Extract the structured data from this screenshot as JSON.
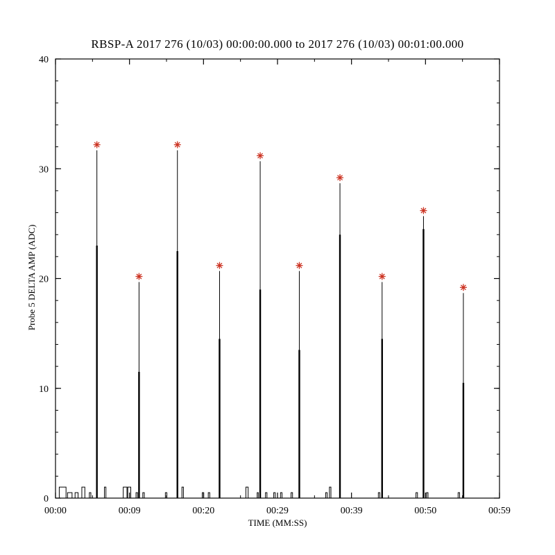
{
  "background": "#ffffff",
  "axes_color": "#000000",
  "chart_data": {
    "type": "line",
    "title": "RBSP-A 2017 276 (10/03) 00:00:00.000 to 2017 276 (10/03) 00:01:00.000",
    "xlabel": "TIME (MM:SS)",
    "ylabel": "Probe 5 DELTA AMP (ADC)",
    "xlim_seconds": [
      0,
      59
    ],
    "ylim": [
      0,
      40
    ],
    "xtick_labels": [
      "00:00",
      "00:09",
      "00:20",
      "00:29",
      "00:39",
      "00:50",
      "00:59"
    ],
    "ytick_values": [
      0,
      10,
      20,
      30,
      40
    ],
    "ytick_labels": [
      "0",
      "10",
      "20",
      "30",
      "40"
    ],
    "y_minor_step": 2,
    "grid": false,
    "legend": "none",
    "line_color": "#000000",
    "marker": "asterisk",
    "marker_color": "#cc3322",
    "spikes": [
      {
        "t": 5.5,
        "peak": 32,
        "thick_to": 23.0
      },
      {
        "t": 11.1,
        "peak": 20,
        "thick_to": 11.5
      },
      {
        "t": 16.2,
        "peak": 32,
        "thick_to": 22.5
      },
      {
        "t": 21.8,
        "peak": 21,
        "thick_to": 14.5
      },
      {
        "t": 27.2,
        "peak": 31,
        "thick_to": 19.0
      },
      {
        "t": 32.4,
        "peak": 21,
        "thick_to": 13.5
      },
      {
        "t": 37.8,
        "peak": 29,
        "thick_to": 24.0
      },
      {
        "t": 43.4,
        "peak": 20,
        "thick_to": 14.5
      },
      {
        "t": 48.9,
        "peak": 26,
        "thick_to": 24.5
      },
      {
        "t": 54.2,
        "peak": 19,
        "thick_to": 10.5
      }
    ],
    "noise_pulses": [
      [
        0.5,
        0.9,
        1
      ],
      [
        1.6,
        0.6,
        0.5
      ],
      [
        2.6,
        0.4,
        0.5
      ],
      [
        3.5,
        0.4,
        1
      ],
      [
        4.5,
        0.2,
        0.5
      ],
      [
        6.5,
        0.2,
        1
      ],
      [
        9.0,
        0.5,
        1
      ],
      [
        9.6,
        0.4,
        1
      ],
      [
        10.7,
        0.2,
        0.5
      ],
      [
        11.6,
        0.2,
        0.5
      ],
      [
        14.6,
        0.2,
        0.5
      ],
      [
        16.8,
        0.2,
        1
      ],
      [
        19.5,
        0.2,
        0.5
      ],
      [
        20.3,
        0.2,
        0.5
      ],
      [
        25.3,
        0.3,
        1
      ],
      [
        26.8,
        0.15,
        0.5
      ],
      [
        27.9,
        0.2,
        0.5
      ],
      [
        29.0,
        0.2,
        0.5
      ],
      [
        29.9,
        0.2,
        0.5
      ],
      [
        31.3,
        0.2,
        0.5
      ],
      [
        35.9,
        0.2,
        0.5
      ],
      [
        36.4,
        0.2,
        1
      ],
      [
        42.9,
        0.2,
        0.5
      ],
      [
        47.9,
        0.2,
        0.5
      ],
      [
        49.3,
        0.2,
        0.5
      ],
      [
        53.5,
        0.2,
        0.5
      ]
    ]
  }
}
